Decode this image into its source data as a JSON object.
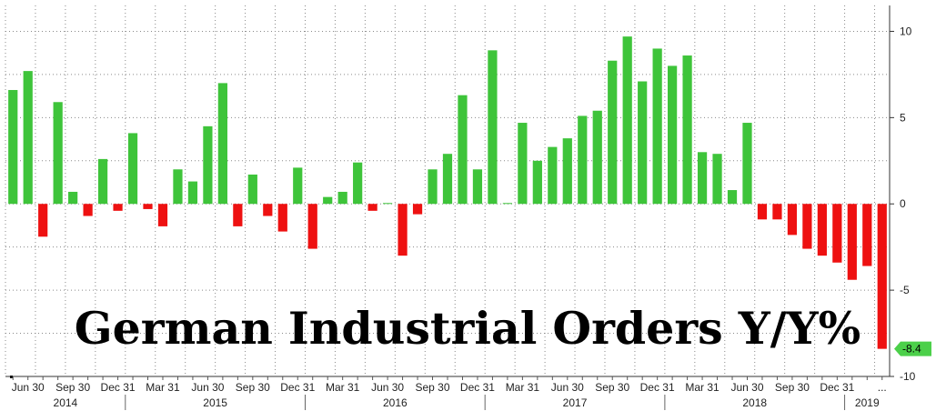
{
  "chart_data": {
    "type": "bar",
    "title": "German Industrial Orders Y/Y%",
    "colors": {
      "positive": "#3ec43a",
      "negative": "#ee1111",
      "last_value_tag": "#4cd04a"
    },
    "ylim": [
      -10,
      11.5
    ],
    "y_ticks": [
      "10",
      "5",
      "0",
      "-5",
      "-10"
    ],
    "y_tick_values": [
      10,
      5,
      0,
      -5,
      -10
    ],
    "grid": true,
    "last_value_label": "-8.4",
    "x_tick_labels": [
      {
        "label": "Jun 30",
        "index": 1
      },
      {
        "label": "Sep 30",
        "index": 4
      },
      {
        "label": "Dec 31",
        "index": 7
      },
      {
        "label": "Mar 31",
        "index": 10
      },
      {
        "label": "Jun 30",
        "index": 13
      },
      {
        "label": "Sep 30",
        "index": 16
      },
      {
        "label": "Dec 31",
        "index": 19
      },
      {
        "label": "Mar 31",
        "index": 22
      },
      {
        "label": "Jun 30",
        "index": 25
      },
      {
        "label": "Sep 30",
        "index": 28
      },
      {
        "label": "Dec 31",
        "index": 31
      },
      {
        "label": "Mar 31",
        "index": 34
      },
      {
        "label": "Jun 30",
        "index": 37
      },
      {
        "label": "Sep 30",
        "index": 40
      },
      {
        "label": "Dec 31",
        "index": 43
      },
      {
        "label": "Mar 31",
        "index": 46
      },
      {
        "label": "Jun 30",
        "index": 49
      },
      {
        "label": "Sep 30",
        "index": 52
      },
      {
        "label": "Dec 31",
        "index": 55
      },
      {
        "label": "...",
        "index": 58
      }
    ],
    "year_labels": [
      {
        "label": "2014",
        "start": 0,
        "end": 7
      },
      {
        "label": "2015",
        "start": 8,
        "end": 19
      },
      {
        "label": "2016",
        "start": 20,
        "end": 31
      },
      {
        "label": "2017",
        "start": 32,
        "end": 43
      },
      {
        "label": "2018",
        "start": 44,
        "end": 55
      },
      {
        "label": "2019",
        "start": 56,
        "end": 58
      }
    ],
    "categories": [
      "May 2014",
      "Jun 2014",
      "Jul 2014",
      "Aug 2014",
      "Sep 2014",
      "Oct 2014",
      "Nov 2014",
      "Dec 2014",
      "Jan 2015",
      "Feb 2015",
      "Mar 2015",
      "Apr 2015",
      "May 2015",
      "Jun 2015",
      "Jul 2015",
      "Aug 2015",
      "Sep 2015",
      "Oct 2015",
      "Nov 2015",
      "Dec 2015",
      "Jan 2016",
      "Feb 2016",
      "Mar 2016",
      "Apr 2016",
      "May 2016",
      "Jun 2016",
      "Jul 2016",
      "Aug 2016",
      "Sep 2016",
      "Oct 2016",
      "Nov 2016",
      "Dec 2016",
      "Jan 2017",
      "Feb 2017",
      "Mar 2017",
      "Apr 2017",
      "May 2017",
      "Jun 2017",
      "Jul 2017",
      "Aug 2017",
      "Sep 2017",
      "Oct 2017",
      "Nov 2017",
      "Dec 2017",
      "Jan 2018",
      "Feb 2018",
      "Mar 2018",
      "Apr 2018",
      "May 2018",
      "Jun 2018",
      "Jul 2018",
      "Aug 2018",
      "Sep 2018",
      "Oct 2018",
      "Nov 2018",
      "Dec 2018",
      "Jan 2019",
      "Feb 2019",
      "Mar 2019"
    ],
    "values": [
      6.6,
      7.7,
      -1.9,
      5.9,
      0.7,
      -0.7,
      2.6,
      -0.4,
      4.1,
      -0.3,
      -1.3,
      2.0,
      1.3,
      4.5,
      7.0,
      -1.3,
      1.7,
      -0.7,
      -1.6,
      2.1,
      -2.6,
      0.4,
      0.7,
      2.4,
      -0.4,
      0.05,
      -3.0,
      -0.6,
      2.0,
      2.9,
      6.3,
      2.0,
      8.9,
      0.05,
      4.7,
      2.5,
      3.3,
      3.8,
      5.1,
      5.4,
      8.3,
      9.7,
      7.1,
      9.0,
      8.0,
      8.6,
      3.0,
      2.9,
      0.8,
      4.7,
      -0.9,
      -0.9,
      -1.8,
      -2.6,
      -3.0,
      -3.4,
      -4.4,
      -3.6,
      -8.4
    ]
  }
}
